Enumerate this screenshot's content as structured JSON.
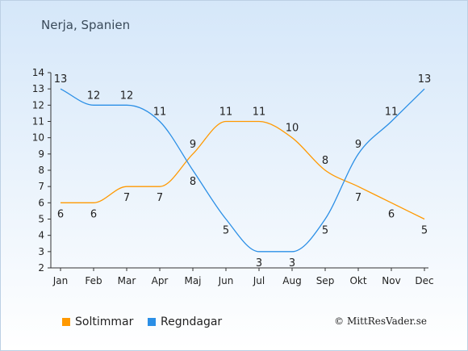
{
  "header": {
    "title": "Nerja, Spanien"
  },
  "credit": "© MittResVader.se",
  "chart_data": {
    "type": "line",
    "categories": [
      "Jan",
      "Feb",
      "Mar",
      "Apr",
      "Maj",
      "Jun",
      "Jul",
      "Aug",
      "Sep",
      "Okt",
      "Nov",
      "Dec"
    ],
    "ylim": [
      2,
      14
    ],
    "yticks": [
      2,
      3,
      4,
      5,
      6,
      7,
      8,
      9,
      10,
      11,
      12,
      13,
      14
    ],
    "grid": false,
    "legend_position": "bottom-left",
    "series": [
      {
        "name": "Soltimmar",
        "color": "#ff9900",
        "values": [
          6,
          6,
          7,
          7,
          9,
          11,
          11,
          10,
          8,
          7,
          6,
          5
        ]
      },
      {
        "name": "Regndagar",
        "color": "#2b8fe6",
        "values": [
          13,
          12,
          12,
          11,
          8,
          5,
          3,
          3,
          5,
          9,
          11,
          13
        ]
      }
    ]
  }
}
